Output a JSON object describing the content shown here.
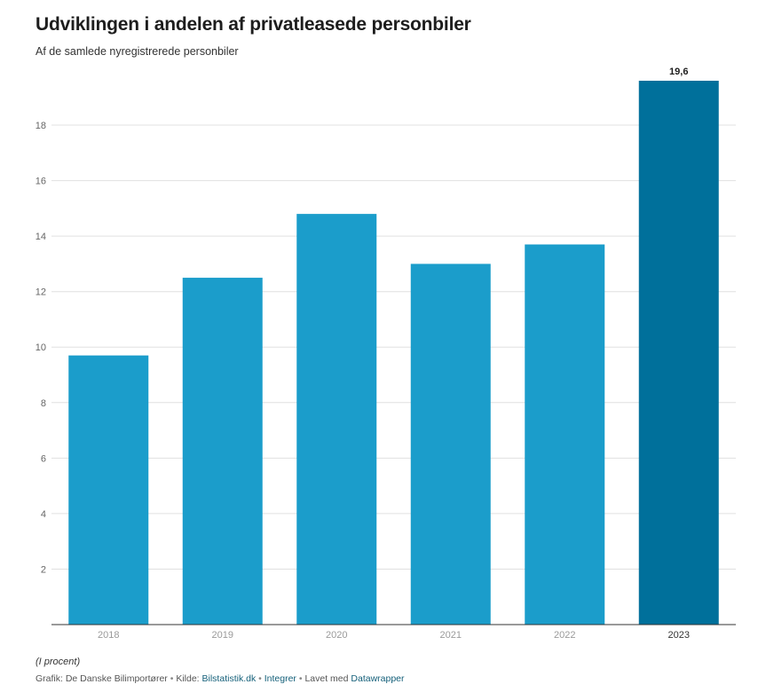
{
  "header": {
    "title": "Udviklingen i andelen af privatleasede personbiler",
    "subtitle": "Af de samlede nyregistrerede personbiler"
  },
  "chart_data": {
    "type": "bar",
    "categories": [
      "2018",
      "2019",
      "2020",
      "2021",
      "2022",
      "2023"
    ],
    "values": [
      9.7,
      12.5,
      14.8,
      13.0,
      13.7,
      19.6
    ],
    "highlight_index": 5,
    "value_labels": [
      "",
      "",
      "",
      "",
      "",
      "19,6"
    ],
    "ylim": [
      0,
      19.6
    ],
    "yticks": [
      "2",
      "4",
      "6",
      "8",
      "10",
      "12",
      "14",
      "16",
      "18"
    ],
    "grid": true,
    "colors": {
      "bar": "#1b9dcb",
      "highlight": "#00709b",
      "grid": "#e0e0e0",
      "axis": "#333333",
      "tick_label": "#666666",
      "muted_tick_label": "#9a9a9a"
    }
  },
  "notes": "(I procent)",
  "footer": {
    "prefix": "Grafik: De Danske Bilimportører",
    "separator": "•",
    "source_label": "Kilde:",
    "source_link": "Bilstatistik.dk",
    "embed_link": "Integrer",
    "made_with": "Lavet med",
    "tool_link": "Datawrapper"
  }
}
